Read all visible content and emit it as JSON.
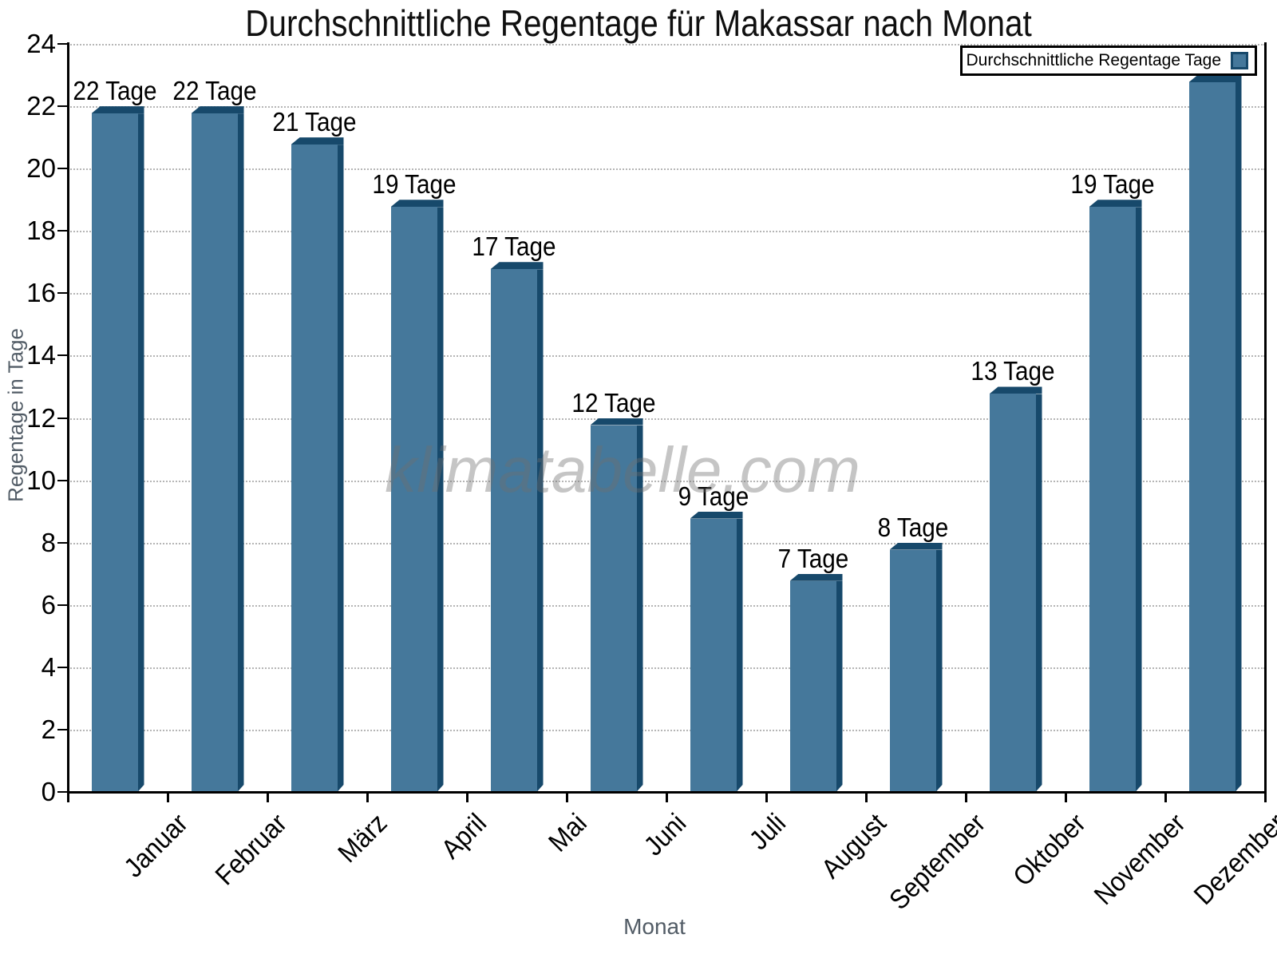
{
  "title": "Durchschnittliche Regentage für Makassar nach Monat",
  "legend": {
    "label": "Durchschnittliche Regentage Tage"
  },
  "watermark": "klimatabelle.com",
  "colors": {
    "bar_face": "#45789B",
    "bar_dark": "#17496B",
    "grid": "#b5b5b5",
    "axis_label_gray": "#525c66"
  },
  "chart_data": {
    "type": "bar",
    "categories": [
      "Januar",
      "Februar",
      "März",
      "April",
      "Mai",
      "Juni",
      "Juli",
      "August",
      "September",
      "Oktober",
      "November",
      "Dezember"
    ],
    "values": [
      22,
      22,
      21,
      19,
      17,
      12,
      9,
      7,
      8,
      13,
      19,
      23
    ],
    "value_unit": "Tage",
    "title": "Durchschnittliche Regentage für Makassar nach Monat",
    "xlabel": "Monat",
    "ylabel": "Regentage in Tage",
    "ylim": [
      0,
      24
    ],
    "ytick_step": 2,
    "grid": true,
    "legend_position": "top-right",
    "legend_label": "Durchschnittliche Regentage Tage"
  }
}
